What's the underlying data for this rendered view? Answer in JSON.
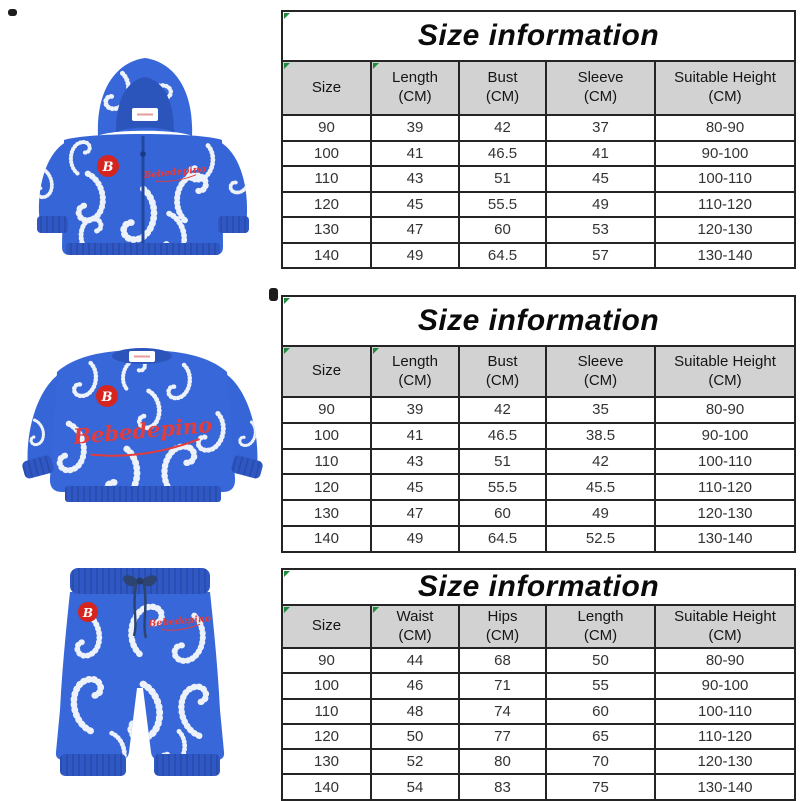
{
  "page_title": "Size information product page",
  "products": [
    {
      "name": "hooded-zip-jacket",
      "badge_letter": "B",
      "brand_text": "Bebedepino"
    },
    {
      "name": "sweatshirt",
      "badge_letter": "B",
      "brand_text": "Bebedepino"
    },
    {
      "name": "sweatpants",
      "badge_letter": "B",
      "brand_text": "Bebedepino"
    }
  ],
  "tables": [
    {
      "title": "Size information",
      "columns": [
        "Size",
        "Length\n(CM)",
        "Bust\n(CM)",
        "Sleeve\n(CM)",
        "Suitable Height\n(CM)"
      ],
      "rows": [
        [
          "90",
          "39",
          "42",
          "37",
          "80-90"
        ],
        [
          "100",
          "41",
          "46.5",
          "41",
          "90-100"
        ],
        [
          "110",
          "43",
          "51",
          "45",
          "100-110"
        ],
        [
          "120",
          "45",
          "55.5",
          "49",
          "110-120"
        ],
        [
          "130",
          "47",
          "60",
          "53",
          "120-130"
        ],
        [
          "140",
          "49",
          "64.5",
          "57",
          "130-140"
        ]
      ],
      "header_flags": [
        true,
        true,
        false,
        false,
        false
      ]
    },
    {
      "title": "Size information",
      "columns": [
        "Size",
        "Length\n(CM)",
        "Bust\n(CM)",
        "Sleeve\n(CM)",
        "Suitable Height\n(CM)"
      ],
      "rows": [
        [
          "90",
          "39",
          "42",
          "35",
          "80-90"
        ],
        [
          "100",
          "41",
          "46.5",
          "38.5",
          "90-100"
        ],
        [
          "110",
          "43",
          "51",
          "42",
          "100-110"
        ],
        [
          "120",
          "45",
          "55.5",
          "45.5",
          "110-120"
        ],
        [
          "130",
          "47",
          "60",
          "49",
          "120-130"
        ],
        [
          "140",
          "49",
          "64.5",
          "52.5",
          "130-140"
        ]
      ],
      "header_flags": [
        true,
        true,
        false,
        false,
        false
      ]
    },
    {
      "title": "Size information",
      "columns": [
        "Size",
        "Waist\n(CM)",
        "Hips\n(CM)",
        "Length\n(CM)",
        "Suitable Height\n(CM)"
      ],
      "rows": [
        [
          "90",
          "44",
          "68",
          "50",
          "80-90"
        ],
        [
          "100",
          "46",
          "71",
          "55",
          "90-100"
        ],
        [
          "110",
          "48",
          "74",
          "60",
          "100-110"
        ],
        [
          "120",
          "50",
          "77",
          "65",
          "110-120"
        ],
        [
          "130",
          "52",
          "80",
          "70",
          "120-130"
        ],
        [
          "140",
          "54",
          "83",
          "75",
          "130-140"
        ]
      ],
      "header_flags": [
        true,
        true,
        false,
        false,
        false
      ]
    }
  ],
  "colors": {
    "garment_blue": "#3565d6",
    "garment_blue_dark": "#2f58c4",
    "paisley_white": "#ecf1fa",
    "badge_red": "#d6251f",
    "brand_red": "#e23c3c",
    "table_header_bg": "#d2d2d2",
    "table_border": "#242424",
    "flag_green": "#1e8a3c"
  }
}
